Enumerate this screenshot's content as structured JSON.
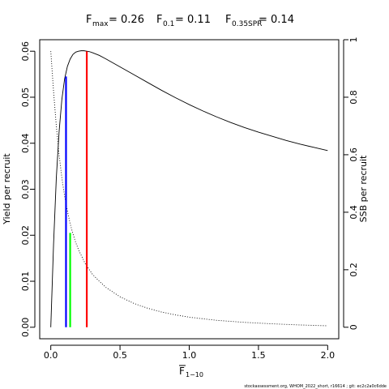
{
  "title": {
    "fmax_base": "F",
    "fmax_sub": "max",
    "fmax_value": "= 0.26",
    "f01_base": "F",
    "f01_sub": "0.1",
    "f01_value": "= 0.11",
    "fspr_base": "F",
    "fspr_sub": "0.35SPR",
    "fspr_value": "= 0.14"
  },
  "footer": "stockassessment.org, WHOM_2022_short, r16614 ; git: ec2c2a0c6dde",
  "chart_data": {
    "type": "line",
    "xlabel_base": "F",
    "xlabel_sub": "1−10",
    "ylabel_left": "Yield per recruit",
    "ylabel_right": "SSB per recruit",
    "xlim": [
      -0.08,
      2.08
    ],
    "ylim_left": [
      -0.0025,
      0.0625
    ],
    "ylim_right": [
      -0.04,
      1.0
    ],
    "x_ticks": [
      0,
      0.5,
      1,
      1.5,
      2
    ],
    "x_tick_labels": [
      "0.0",
      "0.5",
      "1.0",
      "1.5",
      "2.0"
    ],
    "y_left_ticks": [
      0,
      0.01,
      0.02,
      0.03,
      0.04,
      0.05,
      0.06
    ],
    "y_left_tick_labels": [
      "0.00",
      "0.01",
      "0.02",
      "0.03",
      "0.04",
      "0.05",
      "0.06"
    ],
    "y_right_ticks": [
      0,
      0.2,
      0.4,
      0.6,
      0.8,
      1.0
    ],
    "y_right_tick_labels": [
      "0",
      "0.2",
      "0.4",
      "0.6",
      "0.8",
      "1"
    ],
    "grid": false,
    "series": [
      {
        "axis": "left",
        "style": "solid",
        "color": "#000000",
        "x": [
          0,
          0.02,
          0.04,
          0.06,
          0.08,
          0.1,
          0.12,
          0.14,
          0.16,
          0.18,
          0.2,
          0.22,
          0.24,
          0.26,
          0.28,
          0.3,
          0.35,
          0.4,
          0.5,
          0.6,
          0.7,
          0.8,
          0.9,
          1.0,
          1.1,
          1.2,
          1.3,
          1.4,
          1.5,
          1.6,
          1.7,
          1.8,
          1.9,
          2.0
        ],
        "y": [
          0,
          0.018,
          0.0325,
          0.0425,
          0.0495,
          0.054,
          0.0567,
          0.0583,
          0.0593,
          0.0598,
          0.06,
          0.0601,
          0.0601,
          0.06,
          0.0599,
          0.0597,
          0.0591,
          0.0583,
          0.0566,
          0.0549,
          0.0532,
          0.0515,
          0.0499,
          0.0484,
          0.047,
          0.0457,
          0.0445,
          0.0434,
          0.0424,
          0.0415,
          0.0406,
          0.0398,
          0.0391,
          0.0384
        ]
      },
      {
        "axis": "right",
        "style": "dotted",
        "color": "#000000",
        "x": [
          0,
          0.02,
          0.04,
          0.06,
          0.08,
          0.1,
          0.12,
          0.14,
          0.16,
          0.18,
          0.2,
          0.25,
          0.3,
          0.35,
          0.4,
          0.5,
          0.6,
          0.7,
          0.8,
          0.9,
          1.0,
          1.2,
          1.4,
          1.6,
          1.8,
          2.0
        ],
        "y": [
          0.96,
          0.82,
          0.7,
          0.6,
          0.52,
          0.455,
          0.405,
          0.36,
          0.325,
          0.295,
          0.27,
          0.22,
          0.185,
          0.16,
          0.138,
          0.106,
          0.083,
          0.066,
          0.053,
          0.043,
          0.035,
          0.024,
          0.017,
          0.012,
          0.008,
          0.005
        ]
      }
    ],
    "reference_lines": [
      {
        "label": "F0.1",
        "x": 0.11,
        "y_left": 0.0545,
        "color": "#0000ff"
      },
      {
        "label": "Fmax",
        "x": 0.26,
        "y_left": 0.06,
        "color": "#ff0000"
      },
      {
        "label": "F0.35SPR",
        "x": 0.14,
        "y_left": 0.0205,
        "color": "#00ff00"
      }
    ]
  }
}
